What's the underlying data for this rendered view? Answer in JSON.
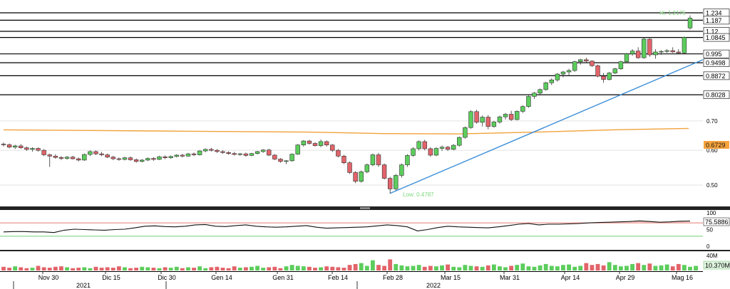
{
  "chart_data": {
    "type": "candlestick",
    "price_ticks": [
      "0.70",
      "0.60",
      "0.50"
    ],
    "level_labels": [
      "1.234",
      "1.187",
      "1.12",
      "1.0845",
      "0.995",
      "0.9498",
      "0.8872",
      "0.8028"
    ],
    "high_text": "Hi: 1.2175",
    "low_text": "Low: 0.4787",
    "ma_value_label": "0.6729",
    "rsi_ticks": [
      "100",
      "50",
      "0"
    ],
    "rsi_value_label": "75.5886",
    "rsi_levels": [
      70,
      30
    ],
    "volume_ticks": [
      "40M"
    ],
    "volume_value_label": "10.370M",
    "date_labels": [
      "Nov 30",
      "Dic 15",
      "Dic 30",
      "Gen 14",
      "Gen 31",
      "Feb 14",
      "Feb 28",
      "Mar 15",
      "Mar 31",
      "Apr 14",
      "Apr 29",
      "Mag 16"
    ],
    "year_labels": [
      "2021",
      "2022"
    ],
    "candles": [
      [
        0.62,
        0.625,
        0.612,
        0.618
      ],
      [
        0.618,
        0.622,
        0.606,
        0.61
      ],
      [
        0.61,
        0.618,
        0.604,
        0.614
      ],
      [
        0.614,
        0.62,
        0.605,
        0.608
      ],
      [
        0.608,
        0.612,
        0.598,
        0.603
      ],
      [
        0.603,
        0.61,
        0.596,
        0.606
      ],
      [
        0.606,
        0.609,
        0.596,
        0.6
      ],
      [
        0.6,
        0.604,
        0.582,
        0.586
      ],
      [
        0.586,
        0.59,
        0.55,
        0.582
      ],
      [
        0.582,
        0.588,
        0.574,
        0.578
      ],
      [
        0.578,
        0.582,
        0.57,
        0.575
      ],
      [
        0.575,
        0.582,
        0.571,
        0.579
      ],
      [
        0.579,
        0.583,
        0.572,
        0.574
      ],
      [
        0.574,
        0.578,
        0.566,
        0.57
      ],
      [
        0.57,
        0.59,
        0.568,
        0.587
      ],
      [
        0.587,
        0.6,
        0.582,
        0.596
      ],
      [
        0.596,
        0.6,
        0.585,
        0.589
      ],
      [
        0.589,
        0.595,
        0.582,
        0.586
      ],
      [
        0.586,
        0.59,
        0.576,
        0.579
      ],
      [
        0.579,
        0.583,
        0.57,
        0.574
      ],
      [
        0.574,
        0.578,
        0.568,
        0.572
      ],
      [
        0.572,
        0.58,
        0.569,
        0.577
      ],
      [
        0.577,
        0.581,
        0.568,
        0.571
      ],
      [
        0.571,
        0.575,
        0.562,
        0.566
      ],
      [
        0.566,
        0.573,
        0.563,
        0.57
      ],
      [
        0.57,
        0.578,
        0.567,
        0.575
      ],
      [
        0.575,
        0.579,
        0.568,
        0.572
      ],
      [
        0.572,
        0.583,
        0.57,
        0.58
      ],
      [
        0.58,
        0.584,
        0.573,
        0.577
      ],
      [
        0.577,
        0.584,
        0.574,
        0.581
      ],
      [
        0.581,
        0.588,
        0.578,
        0.585
      ],
      [
        0.585,
        0.589,
        0.578,
        0.582
      ],
      [
        0.582,
        0.592,
        0.58,
        0.589
      ],
      [
        0.589,
        0.593,
        0.582,
        0.586
      ],
      [
        0.586,
        0.6,
        0.584,
        0.598
      ],
      [
        0.598,
        0.606,
        0.594,
        0.603
      ],
      [
        0.603,
        0.608,
        0.596,
        0.6
      ],
      [
        0.6,
        0.604,
        0.592,
        0.596
      ],
      [
        0.596,
        0.6,
        0.589,
        0.593
      ],
      [
        0.593,
        0.597,
        0.586,
        0.59
      ],
      [
        0.59,
        0.595,
        0.584,
        0.587
      ],
      [
        0.587,
        0.592,
        0.583,
        0.589
      ],
      [
        0.589,
        0.593,
        0.58,
        0.584
      ],
      [
        0.584,
        0.592,
        0.582,
        0.59
      ],
      [
        0.59,
        0.598,
        0.587,
        0.596
      ],
      [
        0.596,
        0.604,
        0.592,
        0.601
      ],
      [
        0.601,
        0.605,
        0.582,
        0.585
      ],
      [
        0.585,
        0.588,
        0.57,
        0.573
      ],
      [
        0.573,
        0.576,
        0.562,
        0.566
      ],
      [
        0.566,
        0.57,
        0.558,
        0.568
      ],
      [
        0.568,
        0.59,
        0.565,
        0.588
      ],
      [
        0.588,
        0.62,
        0.586,
        0.617
      ],
      [
        0.617,
        0.633,
        0.612,
        0.63
      ],
      [
        0.63,
        0.634,
        0.618,
        0.622
      ],
      [
        0.622,
        0.626,
        0.612,
        0.615
      ],
      [
        0.615,
        0.635,
        0.61,
        0.628
      ],
      [
        0.628,
        0.632,
        0.612,
        0.617
      ],
      [
        0.617,
        0.62,
        0.595,
        0.6
      ],
      [
        0.6,
        0.604,
        0.578,
        0.582
      ],
      [
        0.582,
        0.586,
        0.558,
        0.562
      ],
      [
        0.562,
        0.566,
        0.53,
        0.534
      ],
      [
        0.534,
        0.538,
        0.505,
        0.51
      ],
      [
        0.51,
        0.54,
        0.506,
        0.536
      ],
      [
        0.536,
        0.56,
        0.532,
        0.556
      ],
      [
        0.556,
        0.59,
        0.552,
        0.586
      ],
      [
        0.586,
        0.592,
        0.55,
        0.556
      ],
      [
        0.556,
        0.56,
        0.515,
        0.518
      ],
      [
        0.518,
        0.522,
        0.478,
        0.49
      ],
      [
        0.49,
        0.53,
        0.486,
        0.526
      ],
      [
        0.526,
        0.56,
        0.52,
        0.556
      ],
      [
        0.556,
        0.588,
        0.55,
        0.584
      ],
      [
        0.584,
        0.61,
        0.58,
        0.605
      ],
      [
        0.605,
        0.632,
        0.6,
        0.628
      ],
      [
        0.628,
        0.634,
        0.6,
        0.605
      ],
      [
        0.605,
        0.61,
        0.58,
        0.585
      ],
      [
        0.585,
        0.61,
        0.582,
        0.606
      ],
      [
        0.606,
        0.615,
        0.598,
        0.61
      ],
      [
        0.61,
        0.614,
        0.598,
        0.603
      ],
      [
        0.603,
        0.62,
        0.6,
        0.616
      ],
      [
        0.616,
        0.645,
        0.612,
        0.642
      ],
      [
        0.642,
        0.68,
        0.638,
        0.676
      ],
      [
        0.676,
        0.74,
        0.672,
        0.735
      ],
      [
        0.735,
        0.742,
        0.69,
        0.695
      ],
      [
        0.695,
        0.72,
        0.68,
        0.714
      ],
      [
        0.714,
        0.722,
        0.67,
        0.68
      ],
      [
        0.68,
        0.7,
        0.675,
        0.696
      ],
      [
        0.696,
        0.72,
        0.69,
        0.715
      ],
      [
        0.715,
        0.73,
        0.705,
        0.725
      ],
      [
        0.725,
        0.738,
        0.7,
        0.705
      ],
      [
        0.705,
        0.74,
        0.702,
        0.736
      ],
      [
        0.736,
        0.76,
        0.73,
        0.755
      ],
      [
        0.755,
        0.8,
        0.75,
        0.796
      ],
      [
        0.796,
        0.815,
        0.785,
        0.81
      ],
      [
        0.81,
        0.83,
        0.8,
        0.825
      ],
      [
        0.825,
        0.86,
        0.82,
        0.855
      ],
      [
        0.855,
        0.875,
        0.845,
        0.868
      ],
      [
        0.868,
        0.9,
        0.86,
        0.895
      ],
      [
        0.895,
        0.91,
        0.88,
        0.905
      ],
      [
        0.905,
        0.92,
        0.89,
        0.912
      ],
      [
        0.912,
        0.96,
        0.905,
        0.955
      ],
      [
        0.955,
        0.97,
        0.94,
        0.965
      ],
      [
        0.965,
        0.975,
        0.95,
        0.958
      ],
      [
        0.958,
        0.962,
        0.93,
        0.935
      ],
      [
        0.935,
        0.94,
        0.88,
        0.885
      ],
      [
        0.885,
        0.9,
        0.855,
        0.87
      ],
      [
        0.87,
        0.905,
        0.865,
        0.9
      ],
      [
        0.9,
        0.925,
        0.895,
        0.92
      ],
      [
        0.92,
        0.96,
        0.915,
        0.955
      ],
      [
        0.955,
        1.0,
        0.95,
        0.995
      ],
      [
        0.995,
        1.02,
        0.985,
        1.01
      ],
      [
        1.01,
        1.03,
        0.97,
        0.975
      ],
      [
        0.975,
        1.085,
        0.97,
        1.075
      ],
      [
        1.075,
        1.08,
        0.98,
        0.99
      ],
      [
        0.99,
        1.02,
        0.97,
        1.005
      ],
      [
        1.005,
        1.015,
        0.99,
        1.008
      ],
      [
        1.008,
        1.02,
        1.0,
        1.012
      ],
      [
        1.012,
        1.03,
        1.0,
        1.005
      ],
      [
        1.005,
        1.02,
        0.995,
        1.0
      ],
      [
        1.0,
        1.09,
        0.995,
        1.085
      ],
      [
        1.14,
        1.2175,
        1.13,
        1.2
      ]
    ],
    "ma_values": [
      0.668,
      0.666,
      0.664,
      0.662,
      0.66,
      0.655,
      0.654,
      0.66,
      0.668,
      0.673
    ],
    "rsi_values": [
      43,
      44,
      44,
      43,
      43,
      41,
      48,
      51,
      50,
      49,
      48,
      50,
      51,
      55,
      60,
      61,
      59,
      58,
      60,
      64,
      65,
      60,
      59,
      62,
      64,
      60,
      58,
      57,
      58,
      60,
      62,
      57,
      54,
      55,
      56,
      57,
      58,
      61,
      64,
      62,
      58,
      46,
      50,
      56,
      60,
      58,
      57,
      56,
      55,
      58,
      62,
      66,
      68,
      64,
      66,
      66,
      67,
      68,
      70,
      71,
      72,
      73,
      74,
      76,
      74,
      72,
      73,
      75,
      75.59
    ],
    "volume_values": [
      8,
      6,
      9,
      7,
      5,
      6,
      10,
      7,
      6,
      8,
      9,
      7,
      5,
      6,
      7,
      5,
      8,
      6,
      7,
      6,
      9,
      7,
      5,
      6,
      8,
      7,
      6,
      5,
      7,
      6,
      8,
      5,
      7,
      6,
      9,
      5,
      7,
      8,
      6,
      5,
      9,
      6,
      7,
      8,
      10,
      6,
      7,
      8,
      5,
      9,
      12,
      10,
      9,
      8,
      6,
      7,
      9,
      8,
      7,
      6,
      12,
      14,
      16,
      10,
      22,
      12,
      10,
      24,
      14,
      11,
      9,
      10,
      12,
      8,
      10,
      9,
      11,
      13,
      8,
      7,
      12,
      10,
      9,
      8,
      11,
      13,
      9,
      7,
      10,
      12,
      15,
      9,
      8,
      11,
      14,
      10,
      9,
      12,
      13,
      8,
      10,
      16,
      12,
      14,
      11,
      18,
      12,
      9,
      10,
      14,
      16,
      12,
      15,
      10,
      11,
      13,
      9,
      14,
      12,
      8,
      10
    ]
  }
}
